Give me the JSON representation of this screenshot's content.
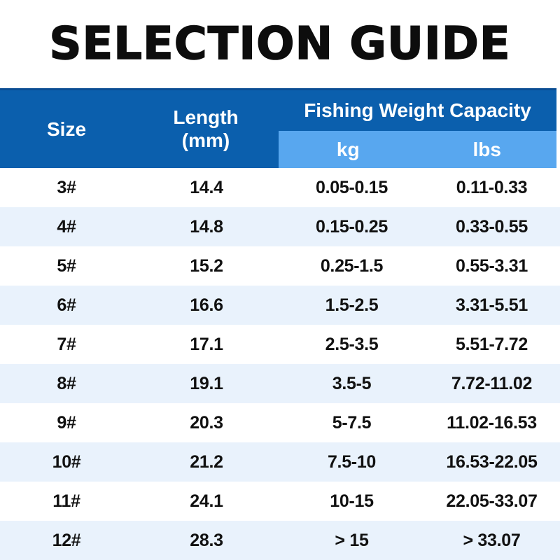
{
  "page": {
    "title": "SELECTION GUIDE"
  },
  "colors": {
    "header_blue": "#0b5fad",
    "header_border_blue": "#0a4d93",
    "subheader_blue": "#58a7ef",
    "row_stripe_blue": "#e9f2fc",
    "title_black": "#0d0d0d"
  },
  "table": {
    "header": {
      "size": "Size",
      "length": "Length",
      "length_unit": "(mm)",
      "capacity_group": "Fishing Weight Capacity",
      "kg": "kg",
      "lbs": "lbs"
    },
    "rows": [
      {
        "size": "3#",
        "length_mm": "14.4",
        "kg": "0.05-0.15",
        "lbs": "0.11-0.33"
      },
      {
        "size": "4#",
        "length_mm": "14.8",
        "kg": "0.15-0.25",
        "lbs": "0.33-0.55"
      },
      {
        "size": "5#",
        "length_mm": "15.2",
        "kg": "0.25-1.5",
        "lbs": "0.55-3.31"
      },
      {
        "size": "6#",
        "length_mm": "16.6",
        "kg": "1.5-2.5",
        "lbs": "3.31-5.51"
      },
      {
        "size": "7#",
        "length_mm": "17.1",
        "kg": "2.5-3.5",
        "lbs": "5.51-7.72"
      },
      {
        "size": "8#",
        "length_mm": "19.1",
        "kg": "3.5-5",
        "lbs": "7.72-11.02"
      },
      {
        "size": "9#",
        "length_mm": "20.3",
        "kg": "5-7.5",
        "lbs": "11.02-16.53"
      },
      {
        "size": "10#",
        "length_mm": "21.2",
        "kg": "7.5-10",
        "lbs": "16.53-22.05"
      },
      {
        "size": "11#",
        "length_mm": "24.1",
        "kg": "10-15",
        "lbs": "22.05-33.07"
      },
      {
        "size": "12#",
        "length_mm": "28.3",
        "kg": "> 15",
        "lbs": "> 33.07"
      }
    ]
  }
}
